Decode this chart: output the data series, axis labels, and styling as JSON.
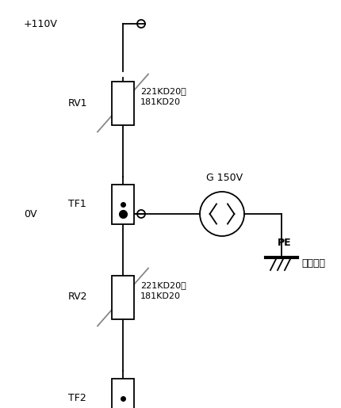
{
  "bg_color": "#ffffff",
  "line_color": "#000000",
  "fig_width": 4.31,
  "fig_height": 5.15,
  "dpi": 100,
  "labels": {
    "plus110v": "+110V",
    "zero_v": "0V",
    "rv1": "RV1",
    "rv2": "RV2",
    "tf1": "TF1",
    "tf2": "TF2",
    "rv1_spec": "221KD20～\n181KD20",
    "rv2_spec": "221KD20～\n181KD20",
    "g_label": "G 150V",
    "pe_label": "PE",
    "ground_label": "保护接地"
  }
}
